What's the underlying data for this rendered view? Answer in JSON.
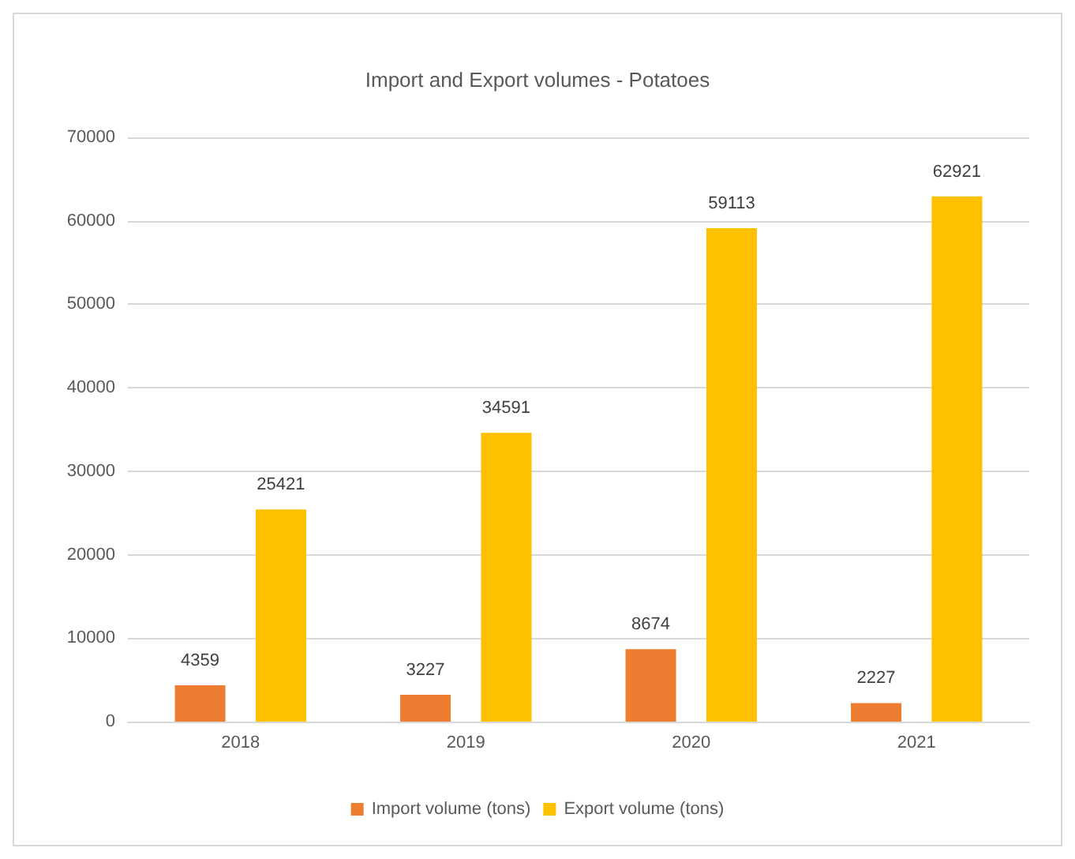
{
  "chart_data": {
    "type": "bar",
    "title": "Import and Export volumes - Potatoes",
    "categories": [
      "2018",
      "2019",
      "2020",
      "2021"
    ],
    "series": [
      {
        "name": "Import volume (tons)",
        "color": "#ed7d31",
        "values": [
          4359,
          3227,
          8674,
          2227
        ]
      },
      {
        "name": "Export volume (tons)",
        "color": "#ffc000",
        "values": [
          25421,
          34591,
          59113,
          62921
        ]
      }
    ],
    "ylim": [
      0,
      70000
    ],
    "yticks": [
      0,
      10000,
      20000,
      30000,
      40000,
      50000,
      60000,
      70000
    ],
    "grid": "y",
    "legend": "bottom",
    "data_labels": true
  }
}
